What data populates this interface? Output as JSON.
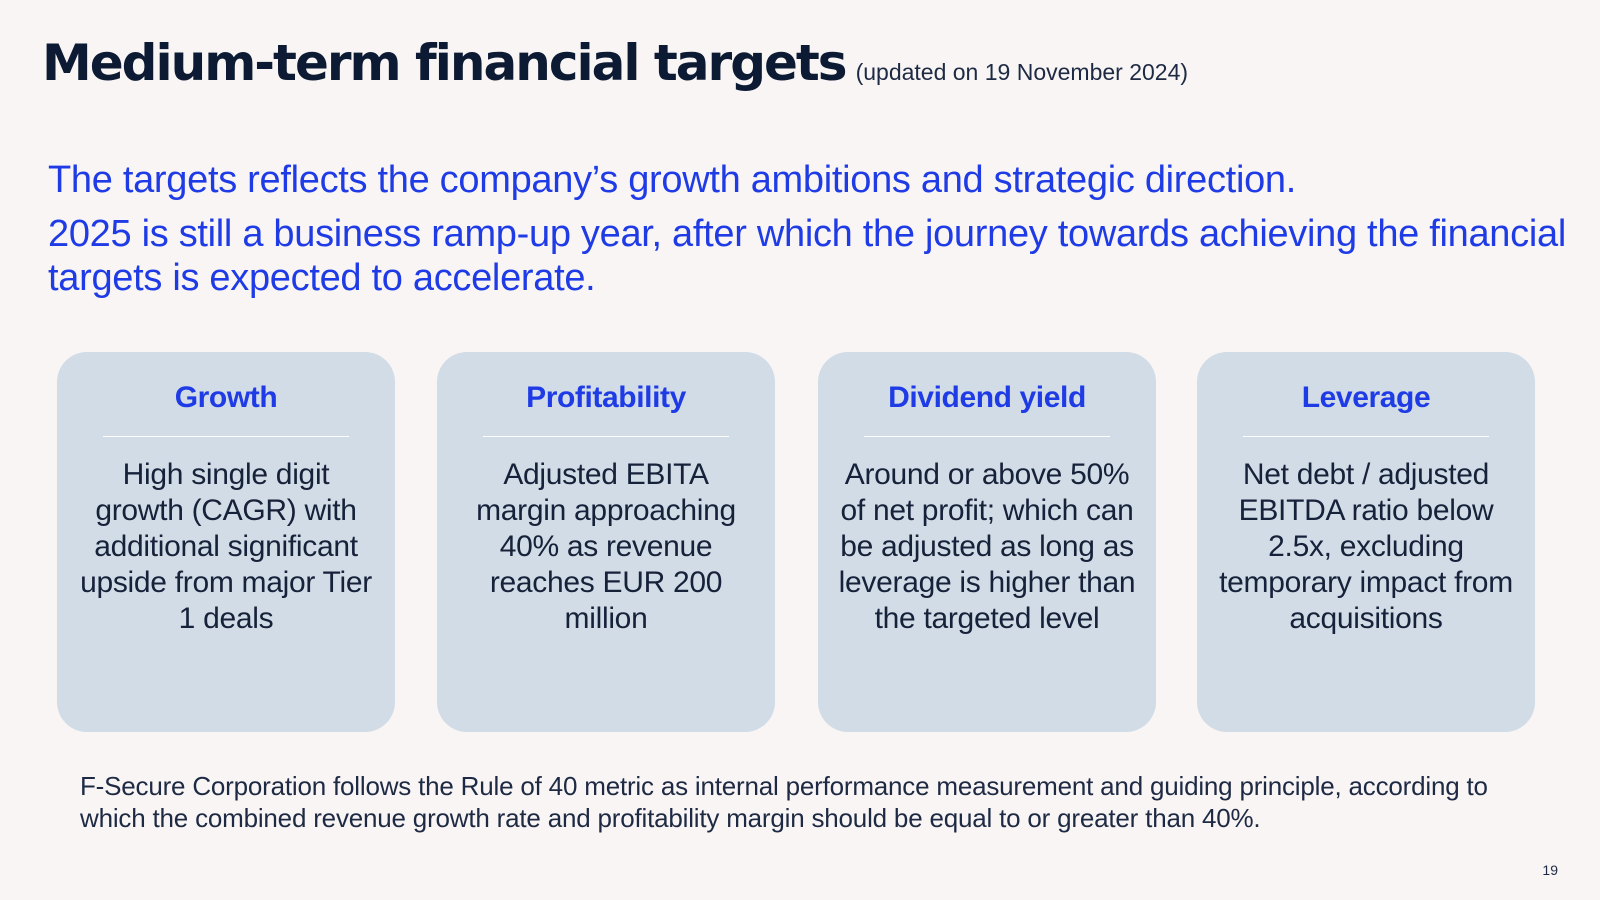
{
  "header": {
    "title": "Medium-term financial targets",
    "subtitle": "(updated on 19 November 2024)"
  },
  "intro": {
    "line1": "The targets reflects the company’s growth ambitions and strategic direction.",
    "line2": "2025 is still a business ramp-up year, after which the journey towards achieving the financial targets is expected to accelerate."
  },
  "cards": [
    {
      "title": "Growth",
      "body": "High single digit growth (CAGR) with additional significant upside from major Tier 1 deals"
    },
    {
      "title": "Profitability",
      "body": "Adjusted EBITA margin approaching 40% as revenue reaches EUR 200 million"
    },
    {
      "title": "Dividend yield",
      "body": "Around or above 50% of net profit; which can be adjusted as long as leverage is higher than the targeted level"
    },
    {
      "title": "Leverage",
      "body": "Net debt / adjusted EBITDA ratio below 2.5x, excluding temporary impact from acquisitions"
    }
  ],
  "footnote": "F-Secure Corporation follows the Rule of 40 metric as internal performance measurement and guiding principle, according to which the combined revenue growth rate and profitability margin should be equal to or greater than 40%.",
  "page_number": "19",
  "colors": {
    "background": "#f8f5f4",
    "accent": "#1f3be6",
    "card": "#d1dce6",
    "text_dark": "#0c1a33"
  }
}
